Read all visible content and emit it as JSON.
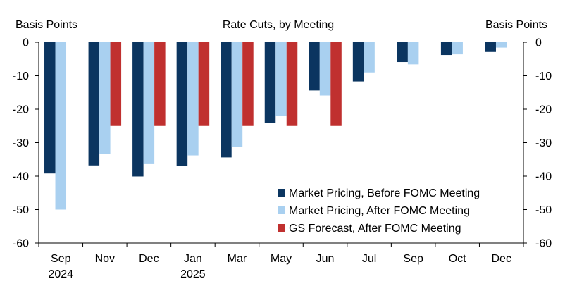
{
  "chart_data": {
    "type": "bar",
    "title": "Rate Cuts, by Meeting",
    "ylabel_left": "Basis Points",
    "ylabel_right": "Basis Points",
    "ylim": [
      -60,
      0
    ],
    "yticks": [
      0,
      -10,
      -20,
      -30,
      -40,
      -50,
      -60
    ],
    "categories": [
      "Sep",
      "Nov",
      "Dec",
      "Jan",
      "Mar",
      "May",
      "Jun",
      "Jul",
      "Sep",
      "Oct",
      "Dec"
    ],
    "category_sublabels": [
      "2024",
      "",
      "",
      "2025",
      "",
      "",
      "",
      "",
      "",
      "",
      ""
    ],
    "series": [
      {
        "name": "Market Pricing, Before FOMC Meeting",
        "color": "#0b3560",
        "values": [
          -39.2,
          -36.8,
          -40.1,
          -36.9,
          -34.4,
          -24.0,
          -14.4,
          -11.7,
          -5.9,
          -3.8,
          -2.9
        ]
      },
      {
        "name": "Market Pricing, After FOMC Meeting",
        "color": "#a9d0f0",
        "values": [
          -50.0,
          -33.3,
          -36.4,
          -33.8,
          -31.2,
          -22.1,
          -15.9,
          -9.0,
          -6.6,
          -3.6,
          -1.6
        ]
      },
      {
        "name": "GS Forecast, After FOMC Meeting",
        "color": "#c0302f",
        "values": [
          null,
          -25.0,
          -25.0,
          -25.0,
          -25.0,
          -25.0,
          -25.0,
          null,
          null,
          null,
          null
        ]
      }
    ],
    "legend_position": "bottom-right",
    "grid": false
  }
}
